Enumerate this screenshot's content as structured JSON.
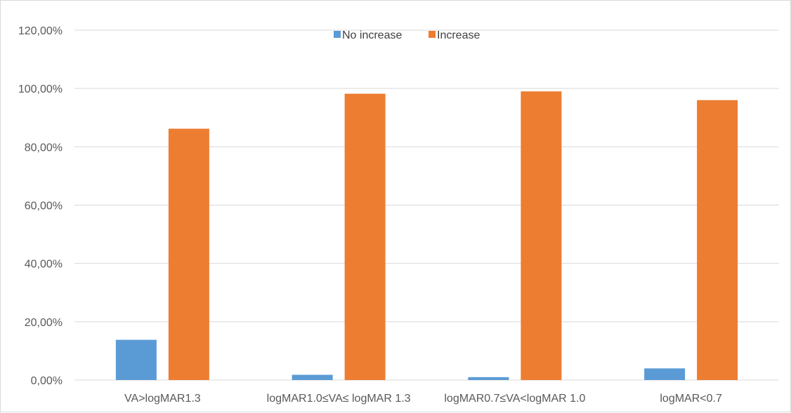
{
  "chart_data": {
    "type": "bar",
    "title": "",
    "xlabel": "",
    "ylabel": "",
    "categories": [
      "VA>logMAR1.3",
      "logMAR1.0≤VA≤ logMAR 1.3",
      "logMAR0.7≤VA<logMAR 1.0",
      "logMAR<0.7"
    ],
    "series": [
      {
        "name": "No increase",
        "color": "#5b9bd5",
        "values": [
          13.8,
          1.8,
          1.0,
          4.0
        ]
      },
      {
        "name": "Increase",
        "color": "#ed7d31",
        "values": [
          86.2,
          98.2,
          99.0,
          96.0
        ]
      }
    ],
    "ylim": [
      0,
      120
    ],
    "yticks": [
      0,
      20,
      40,
      60,
      80,
      100,
      120
    ],
    "ytick_labels": [
      "0,00%",
      "20,00%",
      "40,00%",
      "60,00%",
      "80,00%",
      "100,00%",
      "120,00%"
    ],
    "grid": true,
    "legend_position": "top-center",
    "gridline_color": "#d9d9d9"
  }
}
